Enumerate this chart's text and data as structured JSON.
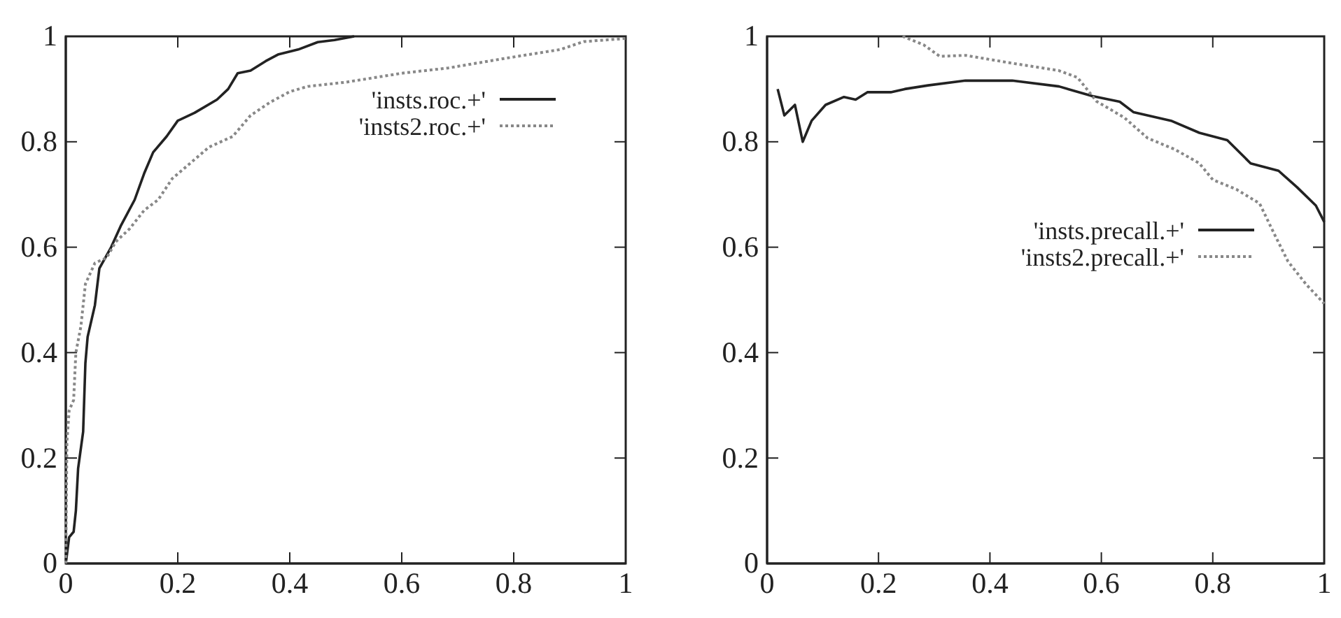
{
  "chart_data": [
    {
      "type": "line",
      "xlim": [
        0,
        1
      ],
      "ylim": [
        0,
        1
      ],
      "xticks": [
        0,
        0.2,
        0.4,
        0.6,
        0.8,
        1
      ],
      "yticks": [
        0,
        0.2,
        0.4,
        0.6,
        0.8,
        1
      ],
      "legend": "top right",
      "grid": false,
      "marker": "none",
      "series": [
        {
          "name": "'insts.roc.+'",
          "color": "#222222",
          "line_style": "solid",
          "x": [
            0,
            0.006,
            0.014,
            0.018,
            0.022,
            0.031,
            0.035,
            0.039,
            0.052,
            0.06,
            0.081,
            0.098,
            0.123,
            0.14,
            0.156,
            0.18,
            0.2,
            0.23,
            0.27,
            0.29,
            0.307,
            0.33,
            0.357,
            0.38,
            0.415,
            0.45,
            0.48,
            0.515
          ],
          "values": [
            0,
            0.05,
            0.06,
            0.1,
            0.18,
            0.25,
            0.38,
            0.43,
            0.49,
            0.56,
            0.6,
            0.64,
            0.69,
            0.74,
            0.78,
            0.81,
            0.84,
            0.855,
            0.88,
            0.9,
            0.93,
            0.935,
            0.953,
            0.966,
            0.975,
            0.989,
            0.993,
            1
          ]
        },
        {
          "name": "'insts2.roc.+'",
          "color": "#888888",
          "line_style": "dotted",
          "x": [
            0,
            0.002,
            0.006,
            0.014,
            0.018,
            0.027,
            0.035,
            0.052,
            0.073,
            0.089,
            0.114,
            0.14,
            0.165,
            0.19,
            0.223,
            0.256,
            0.298,
            0.33,
            0.365,
            0.4,
            0.432,
            0.5,
            0.6,
            0.683,
            0.783,
            0.883,
            0.925,
            1
          ],
          "values": [
            0,
            0.23,
            0.29,
            0.31,
            0.4,
            0.45,
            0.53,
            0.57,
            0.58,
            0.61,
            0.635,
            0.67,
            0.69,
            0.73,
            0.76,
            0.79,
            0.81,
            0.85,
            0.875,
            0.895,
            0.905,
            0.913,
            0.93,
            0.94,
            0.958,
            0.975,
            0.99,
            0.996
          ]
        }
      ]
    },
    {
      "type": "line",
      "xlim": [
        0,
        1
      ],
      "ylim": [
        0,
        1
      ],
      "xticks": [
        0,
        0.2,
        0.4,
        0.6,
        0.8,
        1
      ],
      "yticks": [
        0,
        0.2,
        0.4,
        0.6,
        0.8,
        1
      ],
      "legend": "right",
      "grid": false,
      "marker": "none",
      "series": [
        {
          "name": "'insts.precall.+'",
          "color": "#222222",
          "line_style": "solid",
          "x": [
            0.019,
            0.031,
            0.05,
            0.064,
            0.08,
            0.105,
            0.138,
            0.159,
            0.18,
            0.222,
            0.247,
            0.289,
            0.356,
            0.44,
            0.524,
            0.583,
            0.633,
            0.658,
            0.725,
            0.776,
            0.826,
            0.868,
            0.918,
            0.951,
            0.985,
            1
          ],
          "values": [
            0.9,
            0.85,
            0.87,
            0.8,
            0.84,
            0.87,
            0.885,
            0.88,
            0.894,
            0.894,
            0.9,
            0.907,
            0.916,
            0.916,
            0.905,
            0.887,
            0.876,
            0.856,
            0.84,
            0.817,
            0.803,
            0.759,
            0.745,
            0.714,
            0.679,
            0.648
          ]
        },
        {
          "name": "'insts2.precall.+'",
          "color": "#888888",
          "line_style": "dotted",
          "x": [
            0.243,
            0.281,
            0.31,
            0.356,
            0.44,
            0.524,
            0.557,
            0.574,
            0.591,
            0.641,
            0.683,
            0.733,
            0.776,
            0.8,
            0.842,
            0.884,
            0.91,
            0.935,
            0.968,
            1
          ],
          "values": [
            1,
            0.984,
            0.962,
            0.964,
            0.949,
            0.935,
            0.922,
            0.9,
            0.877,
            0.846,
            0.807,
            0.785,
            0.759,
            0.728,
            0.71,
            0.683,
            0.626,
            0.573,
            0.529,
            0.493
          ]
        }
      ]
    }
  ]
}
